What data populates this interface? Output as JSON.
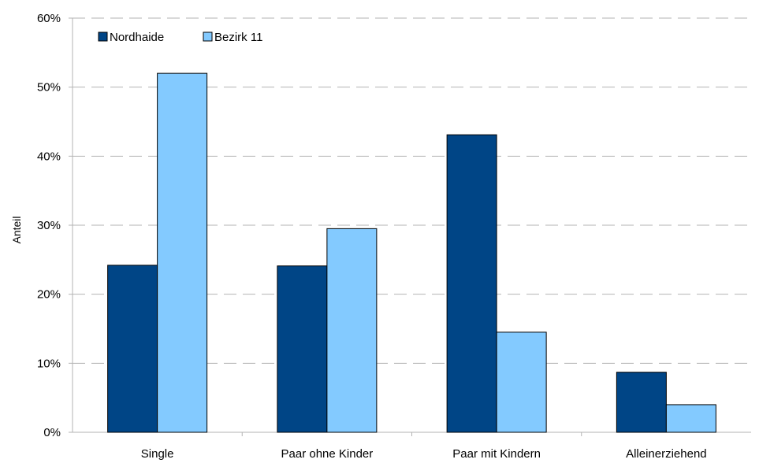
{
  "chart_data": {
    "type": "bar",
    "title": "",
    "xlabel": "",
    "ylabel": "Anteil",
    "categories": [
      "Single",
      "Paar ohne Kinder",
      "Paar mit Kindern",
      "Alleinerziehend"
    ],
    "series": [
      {
        "name": "Nordhaide",
        "values": [
          24.2,
          24.1,
          43.1,
          8.7
        ]
      },
      {
        "name": "Bezirk 11",
        "values": [
          52.0,
          29.5,
          14.5,
          4.0
        ]
      }
    ],
    "ylim": [
      0,
      60
    ],
    "yticks": [
      "0%",
      "10%",
      "20%",
      "30%",
      "40%",
      "50%",
      "60%"
    ],
    "grid": true,
    "legend_position": "top-left",
    "colors": {
      "Nordhaide": "#004586",
      "Bezirk 11": "#83caff"
    }
  }
}
